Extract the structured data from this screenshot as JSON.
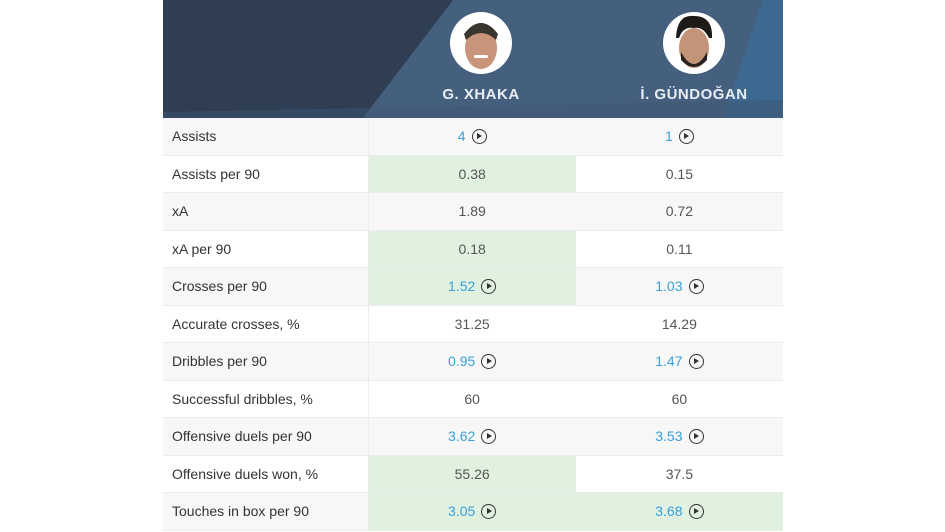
{
  "header": {
    "players": [
      {
        "name": "G. XHAKA",
        "avatar": "player-photo"
      },
      {
        "name": "İ. GÜNDOĞAN",
        "avatar": "player-photo"
      }
    ],
    "colors": {
      "dark": "#2f3e52",
      "mid": "#44607e",
      "accent": "#3a6d99"
    }
  },
  "stats": [
    {
      "label": "Assists",
      "p1": "4",
      "p2": "1",
      "p1_link": true,
      "p2_link": true,
      "p1_hl": false,
      "p2_hl": false
    },
    {
      "label": "Assists per 90",
      "p1": "0.38",
      "p2": "0.15",
      "p1_link": false,
      "p2_link": false,
      "p1_hl": true,
      "p2_hl": false
    },
    {
      "label": "xA",
      "p1": "1.89",
      "p2": "0.72",
      "p1_link": false,
      "p2_link": false,
      "p1_hl": false,
      "p2_hl": false
    },
    {
      "label": "xA per 90",
      "p1": "0.18",
      "p2": "0.11",
      "p1_link": false,
      "p2_link": false,
      "p1_hl": true,
      "p2_hl": false
    },
    {
      "label": "Crosses per 90",
      "p1": "1.52",
      "p2": "1.03",
      "p1_link": true,
      "p2_link": true,
      "p1_hl": true,
      "p2_hl": false
    },
    {
      "label": "Accurate crosses, %",
      "p1": "31.25",
      "p2": "14.29",
      "p1_link": false,
      "p2_link": false,
      "p1_hl": false,
      "p2_hl": false
    },
    {
      "label": "Dribbles per 90",
      "p1": "0.95",
      "p2": "1.47",
      "p1_link": true,
      "p2_link": true,
      "p1_hl": false,
      "p2_hl": false
    },
    {
      "label": "Successful dribbles, %",
      "p1": "60",
      "p2": "60",
      "p1_link": false,
      "p2_link": false,
      "p1_hl": false,
      "p2_hl": false
    },
    {
      "label": "Offensive duels per 90",
      "p1": "3.62",
      "p2": "3.53",
      "p1_link": true,
      "p2_link": true,
      "p1_hl": false,
      "p2_hl": false
    },
    {
      "label": "Offensive duels won, %",
      "p1": "55.26",
      "p2": "37.5",
      "p1_link": false,
      "p2_link": false,
      "p1_hl": true,
      "p2_hl": false
    },
    {
      "label": "Touches in box per 90",
      "p1": "3.05",
      "p2": "3.68",
      "p1_link": true,
      "p2_link": true,
      "p1_hl": true,
      "p2_hl": true
    }
  ]
}
